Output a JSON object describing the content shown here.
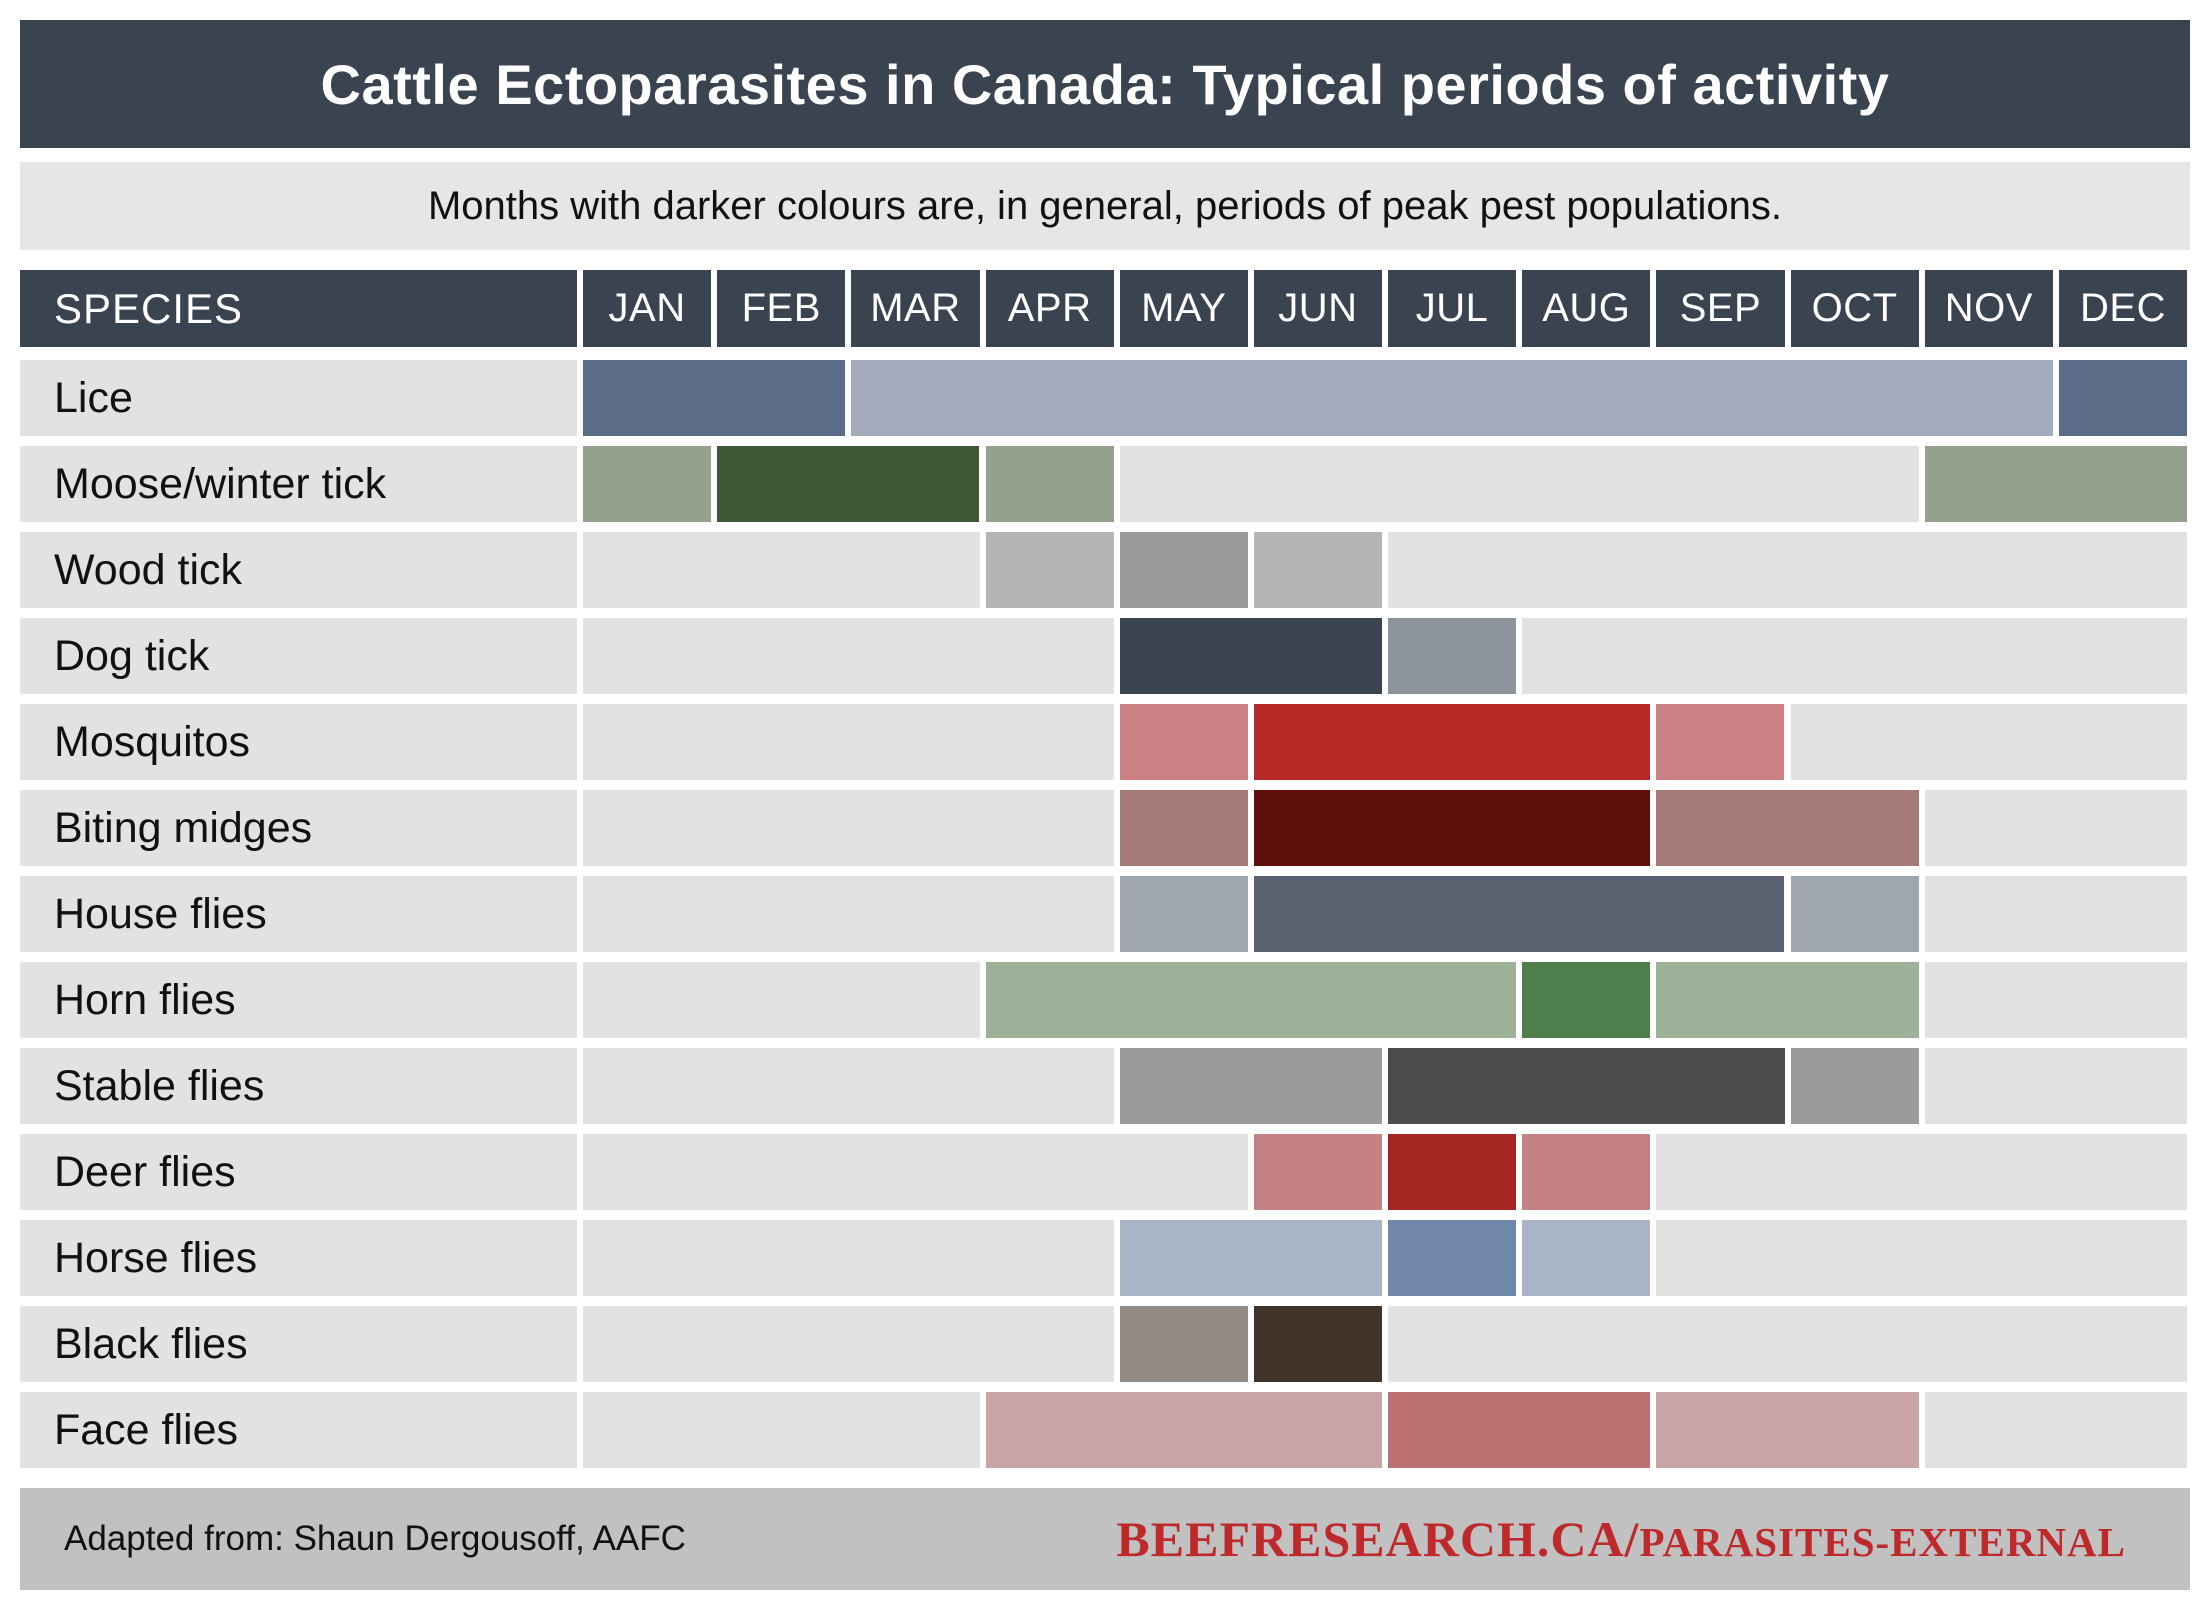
{
  "title": "Cattle Ectoparasites in Canada: Typical periods of activity",
  "subtitle": "Months with darker colours are, in general, periods of peak pest populations.",
  "table": {
    "species_header": "SPECIES"
  },
  "footer": {
    "attribution": "Adapted from: Shaun Dergousoff, AAFC",
    "url_main": "BEEFRESEARCH.CA/",
    "url_sub": "PARASITES-EXTERNAL"
  },
  "colors": {
    "header_bg": "#3A4350",
    "subtitle_bg": "#E6E6E6",
    "label_bg": "#E2E2E2",
    "empty_bg": "#E2E2E2",
    "footer_bg": "#C1C1C1",
    "url_red": "#BE2A2C"
  },
  "chart_data": {
    "type": "heatmap",
    "title": "Cattle Ectoparasites in Canada: Typical periods of activity",
    "legend_note": "Months with darker colours are, in general, periods of peak pest populations.",
    "months": [
      "JAN",
      "FEB",
      "MAR",
      "APR",
      "MAY",
      "JUN",
      "JUL",
      "AUG",
      "SEP",
      "OCT",
      "NOV",
      "DEC"
    ],
    "levels": [
      "active",
      "peak"
    ],
    "rows": [
      {
        "species": "Lice",
        "colors": {
          "active": "#A3ABBC",
          "peak": "#5A6C88"
        },
        "segments": [
          {
            "start": "JAN",
            "end": "FEB",
            "level": "peak"
          },
          {
            "start": "MAR",
            "end": "NOV",
            "level": "active"
          },
          {
            "start": "DEC",
            "end": "DEC",
            "level": "peak"
          }
        ]
      },
      {
        "species": "Moose/winter tick",
        "colors": {
          "active": "#93A18D",
          "peak": "#3E5737"
        },
        "segments": [
          {
            "start": "JAN",
            "end": "JAN",
            "level": "active"
          },
          {
            "start": "FEB",
            "end": "MAR",
            "level": "peak"
          },
          {
            "start": "APR",
            "end": "APR",
            "level": "active"
          },
          {
            "start": "NOV",
            "end": "DEC",
            "level": "active"
          }
        ]
      },
      {
        "species": "Wood tick",
        "colors": {
          "active": "#B5B5B5",
          "peak": "#9A9A9A"
        },
        "segments": [
          {
            "start": "APR",
            "end": "APR",
            "level": "active"
          },
          {
            "start": "MAY",
            "end": "MAY",
            "level": "peak"
          },
          {
            "start": "JUN",
            "end": "JUN",
            "level": "active"
          }
        ]
      },
      {
        "species": "Dog tick",
        "colors": {
          "active": "#8E949C",
          "peak": "#3A4350"
        },
        "segments": [
          {
            "start": "MAY",
            "end": "JUN",
            "level": "peak"
          },
          {
            "start": "JUL",
            "end": "JUL",
            "level": "active"
          }
        ]
      },
      {
        "species": "Mosquitos",
        "colors": {
          "active": "#CC8184",
          "peak": "#B72A28"
        },
        "segments": [
          {
            "start": "MAY",
            "end": "MAY",
            "level": "active"
          },
          {
            "start": "JUN",
            "end": "AUG",
            "level": "peak"
          },
          {
            "start": "SEP",
            "end": "SEP",
            "level": "active"
          }
        ]
      },
      {
        "species": "Biting midges",
        "colors": {
          "active": "#A77B77",
          "peak": "#5F100D"
        },
        "segments": [
          {
            "start": "MAY",
            "end": "MAY",
            "level": "active"
          },
          {
            "start": "JUN",
            "end": "AUG",
            "level": "peak"
          },
          {
            "start": "SEP",
            "end": "OCT",
            "level": "active"
          }
        ]
      },
      {
        "species": "House flies",
        "colors": {
          "active": "#A0A6B0",
          "peak": "#5A6272"
        },
        "segments": [
          {
            "start": "MAY",
            "end": "MAY",
            "level": "active"
          },
          {
            "start": "JUN",
            "end": "SEP",
            "level": "peak"
          },
          {
            "start": "OCT",
            "end": "OCT",
            "level": "active"
          }
        ]
      },
      {
        "species": "Horn flies",
        "colors": {
          "active": "#9CB197",
          "peak": "#4E7E4C"
        },
        "segments": [
          {
            "start": "APR",
            "end": "JUL",
            "level": "active"
          },
          {
            "start": "AUG",
            "end": "AUG",
            "level": "peak"
          },
          {
            "start": "SEP",
            "end": "OCT",
            "level": "active"
          }
        ]
      },
      {
        "species": "Stable flies",
        "colors": {
          "active": "#9B9B9B",
          "peak": "#4C4C4C"
        },
        "segments": [
          {
            "start": "MAY",
            "end": "JUN",
            "level": "active"
          },
          {
            "start": "JUL",
            "end": "SEP",
            "level": "peak"
          },
          {
            "start": "OCT",
            "end": "OCT",
            "level": "active"
          }
        ]
      },
      {
        "species": "Deer flies",
        "colors": {
          "active": "#C48284",
          "peak": "#A52522"
        },
        "segments": [
          {
            "start": "JUN",
            "end": "JUN",
            "level": "active"
          },
          {
            "start": "JUL",
            "end": "JUL",
            "level": "peak"
          },
          {
            "start": "AUG",
            "end": "AUG",
            "level": "active"
          }
        ]
      },
      {
        "species": "Horse flies",
        "colors": {
          "active": "#A9B5C7",
          "peak": "#7288AB"
        },
        "segments": [
          {
            "start": "MAY",
            "end": "JUN",
            "level": "active"
          },
          {
            "start": "JUL",
            "end": "JUL",
            "level": "peak"
          },
          {
            "start": "AUG",
            "end": "AUG",
            "level": "active"
          }
        ]
      },
      {
        "species": "Black flies",
        "colors": {
          "active": "#948B85",
          "peak": "#3F332A"
        },
        "segments": [
          {
            "start": "MAY",
            "end": "MAY",
            "level": "active"
          },
          {
            "start": "JUN",
            "end": "JUN",
            "level": "peak"
          }
        ]
      },
      {
        "species": "Face flies",
        "colors": {
          "active": "#CAA5A7",
          "peak": "#BC7071"
        },
        "segments": [
          {
            "start": "APR",
            "end": "JUN",
            "level": "active"
          },
          {
            "start": "JUL",
            "end": "AUG",
            "level": "peak"
          },
          {
            "start": "SEP",
            "end": "OCT",
            "level": "active"
          }
        ]
      }
    ]
  }
}
